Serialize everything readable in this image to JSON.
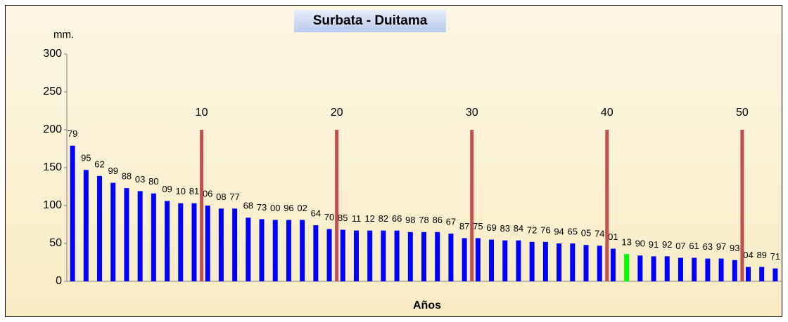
{
  "chart_data": {
    "type": "bar",
    "title": "Surbata - Duitama",
    "y_label": "mm.",
    "x_label": "Años",
    "categories": [
      "79",
      "95",
      "62",
      "99",
      "88",
      "03",
      "80",
      "09",
      "10",
      "81",
      "06",
      "08",
      "77",
      "68",
      "73",
      "00",
      "96",
      "02",
      "64",
      "70",
      "85",
      "11",
      "12",
      "82",
      "66",
      "98",
      "78",
      "86",
      "67",
      "87",
      "75",
      "69",
      "83",
      "84",
      "72",
      "76",
      "94",
      "65",
      "05",
      "74",
      "01",
      "13",
      "90",
      "91",
      "92",
      "07",
      "61",
      "63",
      "97",
      "93",
      "04",
      "89",
      "71"
    ],
    "values": [
      179,
      147,
      139,
      130,
      123,
      119,
      116,
      106,
      103,
      103,
      100,
      96,
      96,
      84,
      82,
      81,
      81,
      81,
      74,
      69,
      68,
      67,
      67,
      67,
      67,
      65,
      65,
      65,
      63,
      57,
      57,
      55,
      54,
      54,
      52,
      52,
      50,
      50,
      48,
      47,
      43,
      36,
      34,
      33,
      33,
      31,
      31,
      30,
      30,
      28,
      19,
      19,
      17
    ],
    "colors": [
      "#0000ff",
      "#0000ff",
      "#0000ff",
      "#0000ff",
      "#0000ff",
      "#0000ff",
      "#0000ff",
      "#0000ff",
      "#0000ff",
      "#0000ff",
      "#0000ff",
      "#0000ff",
      "#0000ff",
      "#0000ff",
      "#0000ff",
      "#0000ff",
      "#0000ff",
      "#0000ff",
      "#0000ff",
      "#0000ff",
      "#0000ff",
      "#0000ff",
      "#0000ff",
      "#0000ff",
      "#0000ff",
      "#0000ff",
      "#0000ff",
      "#0000ff",
      "#0000ff",
      "#0000ff",
      "#0000ff",
      "#0000ff",
      "#0000ff",
      "#0000ff",
      "#0000ff",
      "#0000ff",
      "#0000ff",
      "#0000ff",
      "#0000ff",
      "#0000ff",
      "#0000ff",
      "#00ff00",
      "#0000ff",
      "#0000ff",
      "#0000ff",
      "#0000ff",
      "#0000ff",
      "#0000ff",
      "#0000ff",
      "#0000ff",
      "#0000ff",
      "#0000ff",
      "#0000ff"
    ],
    "markers": {
      "positions": [
        10,
        20,
        30,
        40,
        50
      ],
      "height": 200,
      "color": "#c0504d"
    },
    "ylim": [
      0,
      300
    ],
    "yticks": [
      0,
      50,
      100,
      150,
      200,
      250,
      300
    ],
    "grid": false
  }
}
